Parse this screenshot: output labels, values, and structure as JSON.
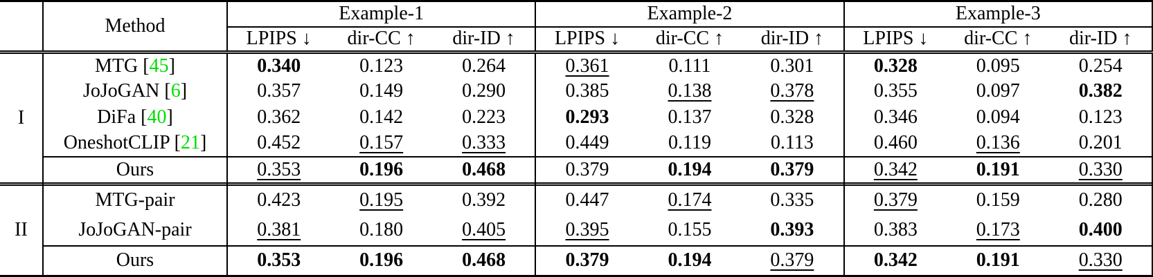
{
  "header": {
    "method": "Method",
    "examples": [
      "Example-1",
      "Example-2",
      "Example-3"
    ],
    "metrics": [
      "LPIPS ↓",
      "dir-CC ↑",
      "dir-ID ↑"
    ]
  },
  "colors": {
    "citation_green": "#00dd00",
    "text": "#000000",
    "background": "#ffffff"
  },
  "groups": [
    {
      "label": "I",
      "rows": [
        {
          "method": "MTG",
          "citation": "45",
          "topline": false,
          "values": [
            {
              "v": "0.340",
              "style": "bold"
            },
            {
              "v": "0.123",
              "style": "normal"
            },
            {
              "v": "0.264",
              "style": "normal"
            },
            {
              "v": "0.361",
              "style": "underline"
            },
            {
              "v": "0.111",
              "style": "normal"
            },
            {
              "v": "0.301",
              "style": "normal"
            },
            {
              "v": "0.328",
              "style": "bold"
            },
            {
              "v": "0.095",
              "style": "normal"
            },
            {
              "v": "0.254",
              "style": "normal"
            }
          ]
        },
        {
          "method": "JoJoGAN",
          "citation": "6",
          "topline": false,
          "values": [
            {
              "v": "0.357",
              "style": "normal"
            },
            {
              "v": "0.149",
              "style": "normal"
            },
            {
              "v": "0.290",
              "style": "normal"
            },
            {
              "v": "0.385",
              "style": "normal"
            },
            {
              "v": "0.138",
              "style": "underline"
            },
            {
              "v": "0.378",
              "style": "underline"
            },
            {
              "v": "0.355",
              "style": "normal"
            },
            {
              "v": "0.097",
              "style": "normal"
            },
            {
              "v": "0.382",
              "style": "bold"
            }
          ]
        },
        {
          "method": "DiFa",
          "citation": "40",
          "topline": false,
          "values": [
            {
              "v": "0.362",
              "style": "normal"
            },
            {
              "v": "0.142",
              "style": "normal"
            },
            {
              "v": "0.223",
              "style": "normal"
            },
            {
              "v": "0.293",
              "style": "bold"
            },
            {
              "v": "0.137",
              "style": "normal"
            },
            {
              "v": "0.328",
              "style": "normal"
            },
            {
              "v": "0.346",
              "style": "normal"
            },
            {
              "v": "0.094",
              "style": "normal"
            },
            {
              "v": "0.123",
              "style": "normal"
            }
          ]
        },
        {
          "method": "OneshotCLIP",
          "citation": "21",
          "topline": false,
          "values": [
            {
              "v": "0.452",
              "style": "normal"
            },
            {
              "v": "0.157",
              "style": "underline"
            },
            {
              "v": "0.333",
              "style": "underline"
            },
            {
              "v": "0.449",
              "style": "normal"
            },
            {
              "v": "0.119",
              "style": "normal"
            },
            {
              "v": "0.113",
              "style": "normal"
            },
            {
              "v": "0.460",
              "style": "normal"
            },
            {
              "v": "0.136",
              "style": "underline"
            },
            {
              "v": "0.201",
              "style": "normal"
            }
          ]
        },
        {
          "method": "Ours",
          "citation": null,
          "topline": true,
          "values": [
            {
              "v": "0.353",
              "style": "underline"
            },
            {
              "v": "0.196",
              "style": "bold"
            },
            {
              "v": "0.468",
              "style": "bold"
            },
            {
              "v": "0.379",
              "style": "normal"
            },
            {
              "v": "0.194",
              "style": "bold"
            },
            {
              "v": "0.379",
              "style": "bold"
            },
            {
              "v": "0.342",
              "style": "underline"
            },
            {
              "v": "0.191",
              "style": "bold"
            },
            {
              "v": "0.330",
              "style": "underline"
            }
          ]
        }
      ]
    },
    {
      "label": "II",
      "rows": [
        {
          "method": "MTG-pair",
          "citation": null,
          "topline": false,
          "values": [
            {
              "v": "0.423",
              "style": "normal"
            },
            {
              "v": "0.195",
              "style": "underline"
            },
            {
              "v": "0.392",
              "style": "normal"
            },
            {
              "v": "0.447",
              "style": "normal"
            },
            {
              "v": "0.174",
              "style": "underline"
            },
            {
              "v": "0.335",
              "style": "normal"
            },
            {
              "v": "0.379",
              "style": "underline"
            },
            {
              "v": "0.159",
              "style": "normal"
            },
            {
              "v": "0.280",
              "style": "normal"
            }
          ]
        },
        {
          "method": "JoJoGAN-pair",
          "citation": null,
          "topline": false,
          "values": [
            {
              "v": "0.381",
              "style": "underline"
            },
            {
              "v": "0.180",
              "style": "normal"
            },
            {
              "v": "0.405",
              "style": "underline"
            },
            {
              "v": "0.395",
              "style": "underline"
            },
            {
              "v": "0.155",
              "style": "normal"
            },
            {
              "v": "0.393",
              "style": "bold"
            },
            {
              "v": "0.383",
              "style": "normal"
            },
            {
              "v": "0.173",
              "style": "underline"
            },
            {
              "v": "0.400",
              "style": "bold"
            }
          ]
        },
        {
          "method": "Ours",
          "citation": null,
          "topline": true,
          "values": [
            {
              "v": "0.353",
              "style": "bold"
            },
            {
              "v": "0.196",
              "style": "bold"
            },
            {
              "v": "0.468",
              "style": "bold"
            },
            {
              "v": "0.379",
              "style": "bold"
            },
            {
              "v": "0.194",
              "style": "bold"
            },
            {
              "v": "0.379",
              "style": "underline"
            },
            {
              "v": "0.342",
              "style": "bold"
            },
            {
              "v": "0.191",
              "style": "bold"
            },
            {
              "v": "0.330",
              "style": "underline"
            }
          ]
        }
      ]
    }
  ]
}
